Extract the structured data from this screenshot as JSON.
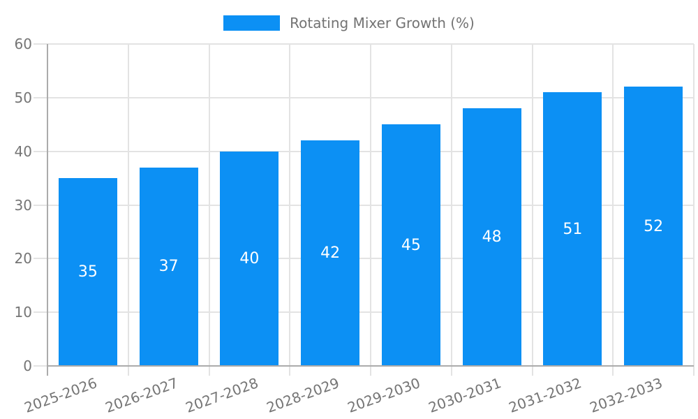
{
  "chart_data": {
    "type": "bar",
    "title": "",
    "xlabel": "",
    "ylabel": "",
    "series_label": "Rotating Mixer Growth (%)",
    "categories": [
      "2025-2026",
      "2026-2027",
      "2027-2028",
      "2028-2029",
      "2029-2030",
      "2030-2031",
      "2031-2032",
      "2032-2033"
    ],
    "values": [
      35,
      37,
      40,
      42,
      45,
      48,
      51,
      52
    ],
    "value_labels": [
      "35",
      "37",
      "40",
      "42",
      "45",
      "48",
      "51",
      "52"
    ],
    "ylim": [
      0,
      60
    ],
    "yticks": [
      0,
      10,
      20,
      30,
      40,
      50,
      60
    ],
    "grid": true,
    "legend_position": "top-center",
    "value_labels_inside_bars": true,
    "x_label_rotation_deg": -20
  },
  "colors": {
    "bar_fill": "#0c90f4",
    "bar_value_label": "#ffffff",
    "grid_line": "#e3e3e3",
    "axis_line": "#ababab",
    "tick_label": "#757575",
    "legend_text": "#737373",
    "background": "#ffffff"
  }
}
